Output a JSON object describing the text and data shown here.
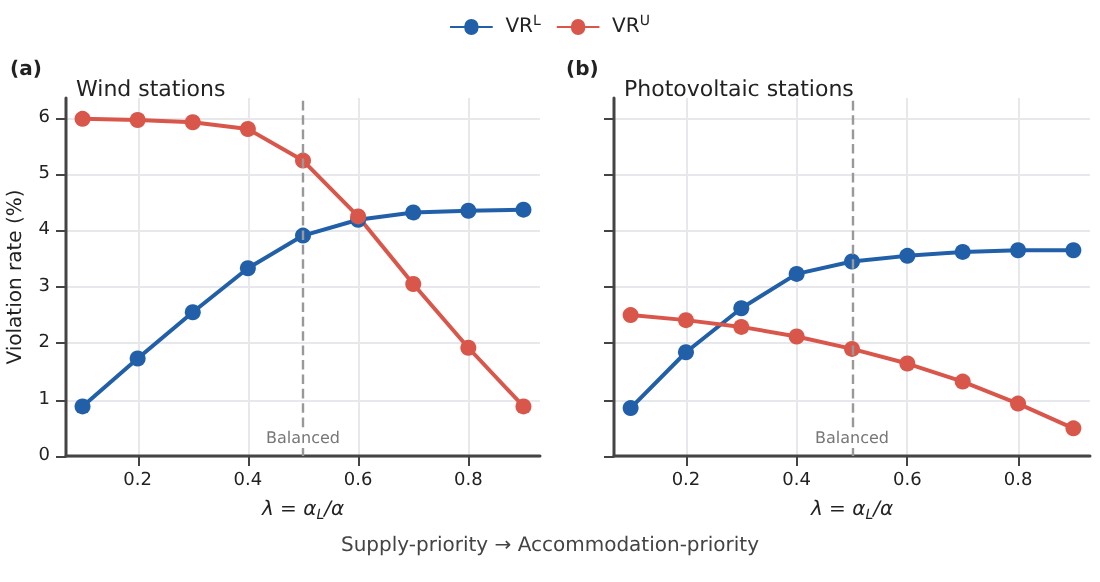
{
  "chart_data": [
    {
      "type": "line",
      "title": "Wind stations",
      "xlabel": "λ = α$_{L}$/α",
      "ylabel": "Violation rate (%)",
      "annotations": [
        "(a)",
        "Supply-priority → Accommodation-priority"
      ],
      "x": [
        0.1,
        0.2,
        0.3,
        0.4,
        0.5,
        0.6,
        0.7,
        0.8,
        0.9
      ],
      "series": [
        {
          "name": "VR$^{L}$",
          "color": "#2160a8",
          "values": [
            0.88,
            1.73,
            2.55,
            3.33,
            3.91,
            4.19,
            4.32,
            4.35,
            4.37
          ]
        },
        {
          "name": "VR$^{U}$",
          "color": "#d9574a",
          "values": [
            5.98,
            5.96,
            5.92,
            5.8,
            5.24,
            4.25,
            3.05,
            1.92,
            0.88
          ]
        }
      ],
      "xlim": [
        0.07,
        0.93
      ],
      "xticks": [
        0.2,
        0.4,
        0.6,
        0.8
      ],
      "ylim": [
        0,
        6.35
      ],
      "yticks": [
        0,
        1,
        2,
        3,
        4,
        5,
        6
      ],
      "ref_lines": [
        {
          "axis": "x",
          "value": 0.5,
          "label": "Balanced",
          "color": "#999999",
          "line_style": "dashed"
        }
      ],
      "grid": true,
      "legend": "top",
      "marker": "circle",
      "line_style": "solid"
    },
    {
      "type": "line",
      "title": "Photovoltaic stations",
      "xlabel": "λ = α$_{L}$/α",
      "annotations": [
        "(b)"
      ],
      "x": [
        0.1,
        0.2,
        0.3,
        0.4,
        0.5,
        0.6,
        0.7,
        0.8,
        0.9
      ],
      "series": [
        {
          "color": "#2160a8",
          "values": [
            0.85,
            1.84,
            2.62,
            3.23,
            3.45,
            3.55,
            3.62,
            3.65,
            3.65
          ]
        },
        {
          "color": "#d9574a",
          "values": [
            2.5,
            2.41,
            2.29,
            2.12,
            1.9,
            1.64,
            1.32,
            0.93,
            0.49
          ]
        }
      ],
      "xlim": [
        0.07,
        0.93
      ],
      "xticks": [
        0.2,
        0.4,
        0.6,
        0.8
      ],
      "ylim": [
        0,
        6.35
      ],
      "yticks": [
        0,
        1,
        2,
        3,
        4,
        5,
        6
      ],
      "ref_lines": [
        {
          "axis": "x",
          "value": 0.5,
          "label": "Balanced",
          "color": "#999999",
          "line_style": "dashed"
        }
      ],
      "grid": true,
      "legend": false,
      "tick_labels": "x",
      "marker": "circle",
      "line_style": "solid"
    }
  ]
}
